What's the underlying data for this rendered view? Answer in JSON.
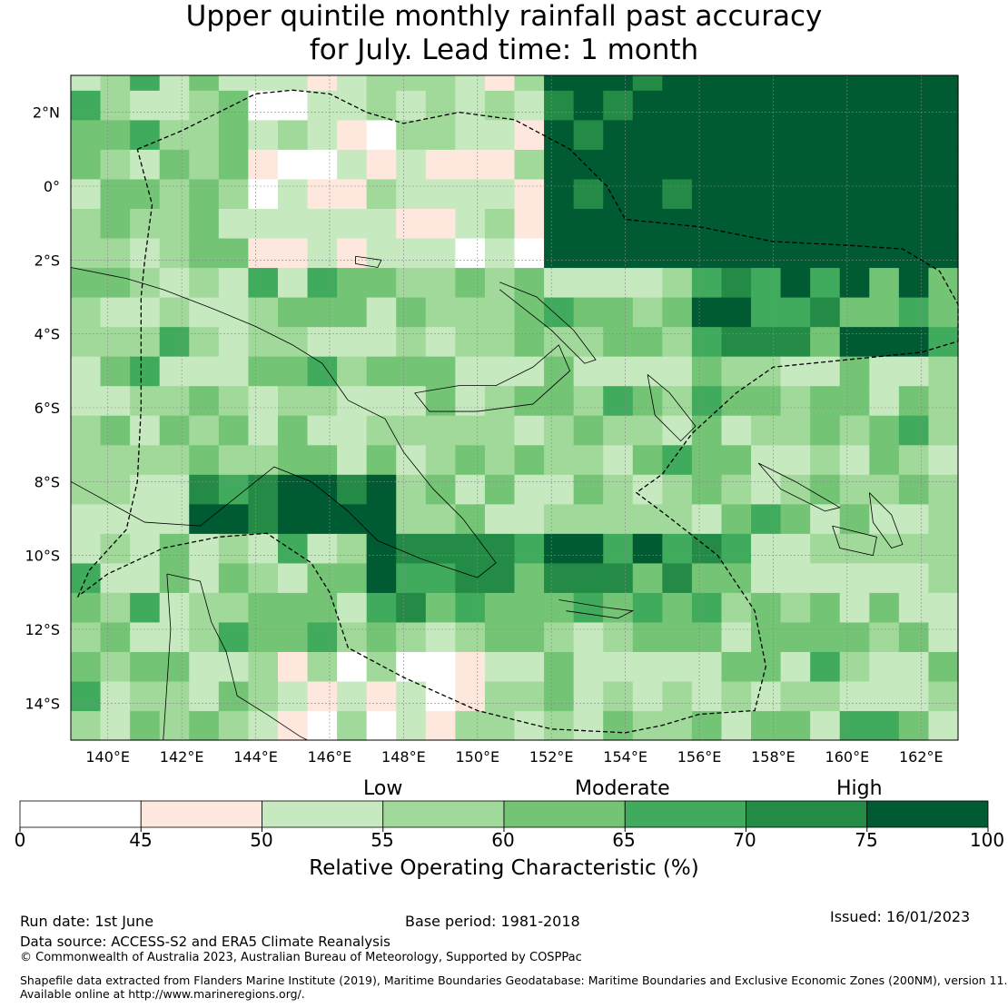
{
  "title": {
    "line1": "Upper quintile monthly rainfall past accuracy",
    "line2": "for July. Lead time: 1 month"
  },
  "map": {
    "lon_range": [
      139,
      163
    ],
    "lat_range": [
      -15,
      3
    ],
    "cell_size_deg": 0.8,
    "lon_ticks": [
      "140°E",
      "142°E",
      "144°E",
      "146°E",
      "148°E",
      "150°E",
      "152°E",
      "154°E",
      "156°E",
      "158°E",
      "160°E",
      "162°E"
    ],
    "lat_ticks": [
      "2°N",
      "0°",
      "2°S",
      "4°S",
      "6°S",
      "8°S",
      "10°S",
      "12°S",
      "14°S"
    ],
    "gridlines": true,
    "coastlines": true,
    "eez_boundaries": "dashed"
  },
  "categories": {
    "low": "Low",
    "moderate": "Moderate",
    "high": "High"
  },
  "colorbar": {
    "ticks": [
      "0",
      "45",
      "50",
      "55",
      "60",
      "65",
      "70",
      "75",
      "100"
    ],
    "colors": [
      "#ffffff",
      "#fee8de",
      "#c7e9c0",
      "#a1d99b",
      "#74c476",
      "#41ab5d",
      "#238b45",
      "#005a32"
    ],
    "title": "Relative Operating Characteristic (%)"
  },
  "footer": {
    "run_date": "Run date: 1st June",
    "base_period": "Base period: 1981-2018",
    "issued": "Issued: 16/01/2023",
    "data_source": "Data source: ACCESS-S2 and ERA5 Climate Reanalysis",
    "copyright": "© Commonwealth of Australia 2023, Australian Bureau of Meteorology, Supported by COSPPac",
    "shapefile_line1": "Shapefile data extracted from Flanders Marine Institute (2019), Maritime Boundaries Geodatabase: Maritime Boundaries and Exclusive Economic Zones (200NM), version 11.",
    "shapefile_line2": "Available online at http://www.marineregions.org/."
  }
}
